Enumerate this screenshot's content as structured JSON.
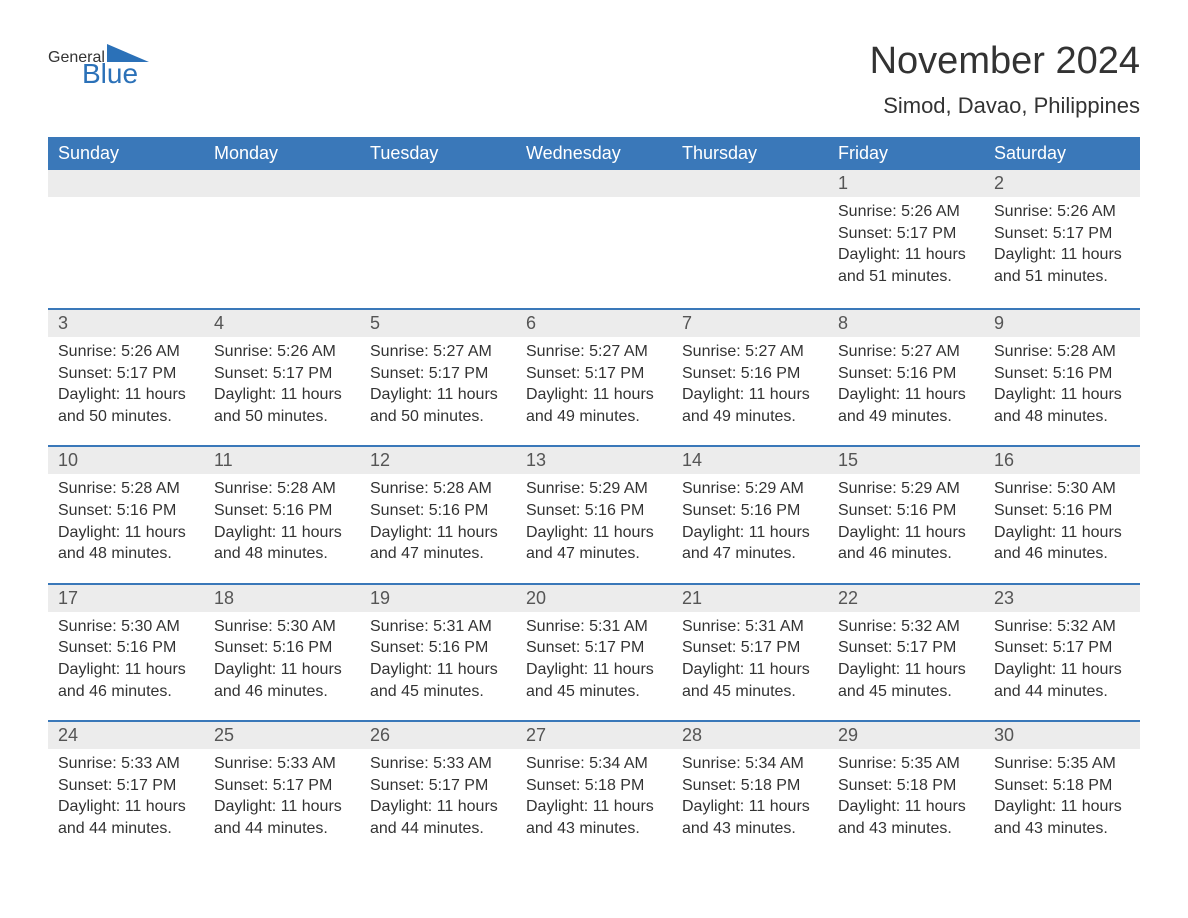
{
  "logo": {
    "text1": "General",
    "text2": "Blue"
  },
  "header": {
    "month_title": "November 2024",
    "location": "Simod, Davao, Philippines"
  },
  "colors": {
    "brand_blue": "#3a78b9",
    "link_blue": "#2b71b8",
    "header_bg": "#3a78b9",
    "header_fg": "#ffffff",
    "daynum_bg": "#ececec",
    "text": "#333333",
    "row_border": "#3a78b9",
    "background": "#ffffff"
  },
  "day_headers": [
    "Sunday",
    "Monday",
    "Tuesday",
    "Wednesday",
    "Thursday",
    "Friday",
    "Saturday"
  ],
  "weeks": [
    [
      null,
      null,
      null,
      null,
      null,
      {
        "n": "1",
        "sunrise": "Sunrise: 5:26 AM",
        "sunset": "Sunset: 5:17 PM",
        "daylight": "Daylight: 11 hours and 51 minutes."
      },
      {
        "n": "2",
        "sunrise": "Sunrise: 5:26 AM",
        "sunset": "Sunset: 5:17 PM",
        "daylight": "Daylight: 11 hours and 51 minutes."
      }
    ],
    [
      {
        "n": "3",
        "sunrise": "Sunrise: 5:26 AM",
        "sunset": "Sunset: 5:17 PM",
        "daylight": "Daylight: 11 hours and 50 minutes."
      },
      {
        "n": "4",
        "sunrise": "Sunrise: 5:26 AM",
        "sunset": "Sunset: 5:17 PM",
        "daylight": "Daylight: 11 hours and 50 minutes."
      },
      {
        "n": "5",
        "sunrise": "Sunrise: 5:27 AM",
        "sunset": "Sunset: 5:17 PM",
        "daylight": "Daylight: 11 hours and 50 minutes."
      },
      {
        "n": "6",
        "sunrise": "Sunrise: 5:27 AM",
        "sunset": "Sunset: 5:17 PM",
        "daylight": "Daylight: 11 hours and 49 minutes."
      },
      {
        "n": "7",
        "sunrise": "Sunrise: 5:27 AM",
        "sunset": "Sunset: 5:16 PM",
        "daylight": "Daylight: 11 hours and 49 minutes."
      },
      {
        "n": "8",
        "sunrise": "Sunrise: 5:27 AM",
        "sunset": "Sunset: 5:16 PM",
        "daylight": "Daylight: 11 hours and 49 minutes."
      },
      {
        "n": "9",
        "sunrise": "Sunrise: 5:28 AM",
        "sunset": "Sunset: 5:16 PM",
        "daylight": "Daylight: 11 hours and 48 minutes."
      }
    ],
    [
      {
        "n": "10",
        "sunrise": "Sunrise: 5:28 AM",
        "sunset": "Sunset: 5:16 PM",
        "daylight": "Daylight: 11 hours and 48 minutes."
      },
      {
        "n": "11",
        "sunrise": "Sunrise: 5:28 AM",
        "sunset": "Sunset: 5:16 PM",
        "daylight": "Daylight: 11 hours and 48 minutes."
      },
      {
        "n": "12",
        "sunrise": "Sunrise: 5:28 AM",
        "sunset": "Sunset: 5:16 PM",
        "daylight": "Daylight: 11 hours and 47 minutes."
      },
      {
        "n": "13",
        "sunrise": "Sunrise: 5:29 AM",
        "sunset": "Sunset: 5:16 PM",
        "daylight": "Daylight: 11 hours and 47 minutes."
      },
      {
        "n": "14",
        "sunrise": "Sunrise: 5:29 AM",
        "sunset": "Sunset: 5:16 PM",
        "daylight": "Daylight: 11 hours and 47 minutes."
      },
      {
        "n": "15",
        "sunrise": "Sunrise: 5:29 AM",
        "sunset": "Sunset: 5:16 PM",
        "daylight": "Daylight: 11 hours and 46 minutes."
      },
      {
        "n": "16",
        "sunrise": "Sunrise: 5:30 AM",
        "sunset": "Sunset: 5:16 PM",
        "daylight": "Daylight: 11 hours and 46 minutes."
      }
    ],
    [
      {
        "n": "17",
        "sunrise": "Sunrise: 5:30 AM",
        "sunset": "Sunset: 5:16 PM",
        "daylight": "Daylight: 11 hours and 46 minutes."
      },
      {
        "n": "18",
        "sunrise": "Sunrise: 5:30 AM",
        "sunset": "Sunset: 5:16 PM",
        "daylight": "Daylight: 11 hours and 46 minutes."
      },
      {
        "n": "19",
        "sunrise": "Sunrise: 5:31 AM",
        "sunset": "Sunset: 5:16 PM",
        "daylight": "Daylight: 11 hours and 45 minutes."
      },
      {
        "n": "20",
        "sunrise": "Sunrise: 5:31 AM",
        "sunset": "Sunset: 5:17 PM",
        "daylight": "Daylight: 11 hours and 45 minutes."
      },
      {
        "n": "21",
        "sunrise": "Sunrise: 5:31 AM",
        "sunset": "Sunset: 5:17 PM",
        "daylight": "Daylight: 11 hours and 45 minutes."
      },
      {
        "n": "22",
        "sunrise": "Sunrise: 5:32 AM",
        "sunset": "Sunset: 5:17 PM",
        "daylight": "Daylight: 11 hours and 45 minutes."
      },
      {
        "n": "23",
        "sunrise": "Sunrise: 5:32 AM",
        "sunset": "Sunset: 5:17 PM",
        "daylight": "Daylight: 11 hours and 44 minutes."
      }
    ],
    [
      {
        "n": "24",
        "sunrise": "Sunrise: 5:33 AM",
        "sunset": "Sunset: 5:17 PM",
        "daylight": "Daylight: 11 hours and 44 minutes."
      },
      {
        "n": "25",
        "sunrise": "Sunrise: 5:33 AM",
        "sunset": "Sunset: 5:17 PM",
        "daylight": "Daylight: 11 hours and 44 minutes."
      },
      {
        "n": "26",
        "sunrise": "Sunrise: 5:33 AM",
        "sunset": "Sunset: 5:17 PM",
        "daylight": "Daylight: 11 hours and 44 minutes."
      },
      {
        "n": "27",
        "sunrise": "Sunrise: 5:34 AM",
        "sunset": "Sunset: 5:18 PM",
        "daylight": "Daylight: 11 hours and 43 minutes."
      },
      {
        "n": "28",
        "sunrise": "Sunrise: 5:34 AM",
        "sunset": "Sunset: 5:18 PM",
        "daylight": "Daylight: 11 hours and 43 minutes."
      },
      {
        "n": "29",
        "sunrise": "Sunrise: 5:35 AM",
        "sunset": "Sunset: 5:18 PM",
        "daylight": "Daylight: 11 hours and 43 minutes."
      },
      {
        "n": "30",
        "sunrise": "Sunrise: 5:35 AM",
        "sunset": "Sunset: 5:18 PM",
        "daylight": "Daylight: 11 hours and 43 minutes."
      }
    ]
  ]
}
